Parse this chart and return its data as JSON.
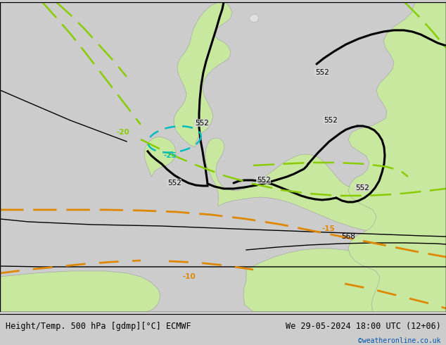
{
  "title_left": "Height/Temp. 500 hPa [gdmp][°C] ECMWF",
  "title_right": "We 29-05-2024 18:00 UTC (12+06)",
  "credit": "©weatheronline.co.uk",
  "fig_width": 6.34,
  "fig_height": 4.9,
  "footer_fontsize": 8.5,
  "credit_color": "#0055aa",
  "sea_color": "#d8d8d8",
  "land_color": "#c8e8a0",
  "land_edge_color": "#a0a0a0",
  "black_contour_lw": 2.2,
  "thin_contour_lw": 1.0,
  "green_dash_color": "#88cc00",
  "cyan_dash_color": "#00bbbb",
  "orange_dash_color": "#dd8800",
  "label_fontsize": 7.5,
  "label_bg": "#d8d8d8"
}
